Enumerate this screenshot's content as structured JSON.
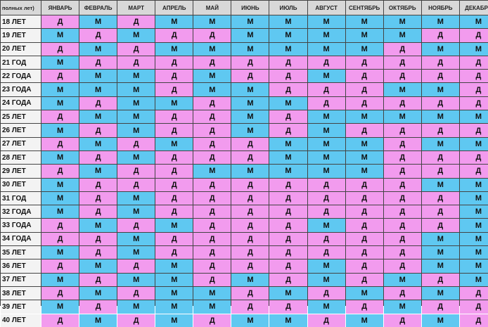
{
  "colors": {
    "girl": "#f29bee",
    "boy": "#5fc8f1",
    "header": "#d8d8d8"
  },
  "table": {
    "corner": "полных лет)",
    "months": [
      "ЯНВАРЬ",
      "ФЕВРАЛЬ",
      "МАРТ",
      "АПРЕЛЬ",
      "МАЙ",
      "ИЮНЬ",
      "ИЮЛЬ",
      "АВГУСТ",
      "СЕНТЯБРЬ",
      "ОКТЯБРЬ",
      "НОЯБРЬ",
      "ДЕКАБРЬ"
    ],
    "rows": [
      {
        "age": "18 ЛЕТ",
        "cells": [
          "Д",
          "М",
          "Д",
          "М",
          "М",
          "М",
          "М",
          "М",
          "М",
          "М",
          "М",
          "М"
        ]
      },
      {
        "age": "19 ЛЕТ",
        "cells": [
          "М",
          "Д",
          "М",
          "Д",
          "Д",
          "М",
          "М",
          "М",
          "М",
          "М",
          "Д",
          "Д"
        ]
      },
      {
        "age": "20 ЛЕТ",
        "cells": [
          "Д",
          "М",
          "Д",
          "М",
          "М",
          "М",
          "М",
          "М",
          "М",
          "Д",
          "М",
          "М"
        ]
      },
      {
        "age": "21 ГОД",
        "cells": [
          "М",
          "Д",
          "Д",
          "Д",
          "Д",
          "Д",
          "Д",
          "Д",
          "Д",
          "Д",
          "Д",
          "Д"
        ]
      },
      {
        "age": "22 ГОДА",
        "cells": [
          "Д",
          "М",
          "М",
          "Д",
          "М",
          "Д",
          "Д",
          "М",
          "Д",
          "Д",
          "Д",
          "Д"
        ]
      },
      {
        "age": "23 ГОДА",
        "cells": [
          "М",
          "М",
          "М",
          "Д",
          "М",
          "М",
          "Д",
          "Д",
          "Д",
          "М",
          "М",
          "Д"
        ]
      },
      {
        "age": "24 ГОДА",
        "cells": [
          "М",
          "Д",
          "М",
          "М",
          "Д",
          "М",
          "М",
          "Д",
          "Д",
          "Д",
          "Д",
          "Д"
        ]
      },
      {
        "age": "25 ЛЕТ",
        "cells": [
          "Д",
          "М",
          "М",
          "Д",
          "Д",
          "М",
          "Д",
          "М",
          "М",
          "М",
          "М",
          "М"
        ]
      },
      {
        "age": "26 ЛЕТ",
        "cells": [
          "М",
          "Д",
          "М",
          "Д",
          "Д",
          "М",
          "Д",
          "М",
          "Д",
          "Д",
          "Д",
          "Д"
        ]
      },
      {
        "age": "27 ЛЕТ",
        "cells": [
          "Д",
          "М",
          "Д",
          "М",
          "Д",
          "Д",
          "М",
          "М",
          "М",
          "Д",
          "М",
          "М"
        ]
      },
      {
        "age": "28 ЛЕТ",
        "cells": [
          "М",
          "Д",
          "М",
          "Д",
          "Д",
          "Д",
          "М",
          "М",
          "М",
          "Д",
          "Д",
          "Д"
        ]
      },
      {
        "age": "29 ЛЕТ",
        "cells": [
          "Д",
          "М",
          "Д",
          "Д",
          "М",
          "М",
          "М",
          "М",
          "М",
          "Д",
          "Д",
          "Д"
        ]
      },
      {
        "age": "30 ЛЕТ",
        "cells": [
          "М",
          "Д",
          "Д",
          "Д",
          "Д",
          "Д",
          "Д",
          "Д",
          "Д",
          "Д",
          "М",
          "М"
        ]
      },
      {
        "age": "31 ГОД",
        "cells": [
          "М",
          "Д",
          "М",
          "Д",
          "Д",
          "Д",
          "Д",
          "Д",
          "Д",
          "Д",
          "Д",
          "М"
        ]
      },
      {
        "age": "32 ГОДА",
        "cells": [
          "М",
          "Д",
          "М",
          "Д",
          "Д",
          "Д",
          "Д",
          "Д",
          "Д",
          "Д",
          "Д",
          "М"
        ]
      },
      {
        "age": "33 ГОДА",
        "cells": [
          "Д",
          "М",
          "Д",
          "М",
          "Д",
          "Д",
          "Д",
          "М",
          "Д",
          "Д",
          "Д",
          "М"
        ]
      },
      {
        "age": "34 ГОДА",
        "cells": [
          "Д",
          "Д",
          "М",
          "Д",
          "Д",
          "Д",
          "Д",
          "Д",
          "Д",
          "Д",
          "М",
          "М"
        ]
      },
      {
        "age": "35 ЛЕТ",
        "cells": [
          "М",
          "Д",
          "М",
          "Д",
          "Д",
          "Д",
          "Д",
          "Д",
          "Д",
          "Д",
          "М",
          "М"
        ]
      },
      {
        "age": "36 ЛЕТ",
        "cells": [
          "Д",
          "М",
          "Д",
          "М",
          "Д",
          "Д",
          "Д",
          "М",
          "Д",
          "Д",
          "М",
          "М"
        ]
      },
      {
        "age": "37 ЛЕТ",
        "cells": [
          "М",
          "Д",
          "М",
          "М",
          "Д",
          "М",
          "Д",
          "М",
          "Д",
          "М",
          "Д",
          "М"
        ]
      },
      {
        "age": "38 ЛЕТ",
        "cells": [
          "Д",
          "М",
          "Д",
          "М",
          "М",
          "Д",
          "М",
          "Д",
          "М",
          "Д",
          "М",
          "Д"
        ]
      },
      {
        "age": "39 ЛЕТ",
        "cells": [
          "М",
          "Д",
          "М",
          "М",
          "М",
          "Д",
          "Д",
          "М",
          "Д",
          "М",
          "Д",
          "Д"
        ]
      },
      {
        "age": "40 ЛЕТ",
        "cells": [
          "Д",
          "М",
          "Д",
          "М",
          "Д",
          "М",
          "М",
          "Д",
          "М",
          "Д",
          "М",
          "Д"
        ]
      }
    ]
  }
}
